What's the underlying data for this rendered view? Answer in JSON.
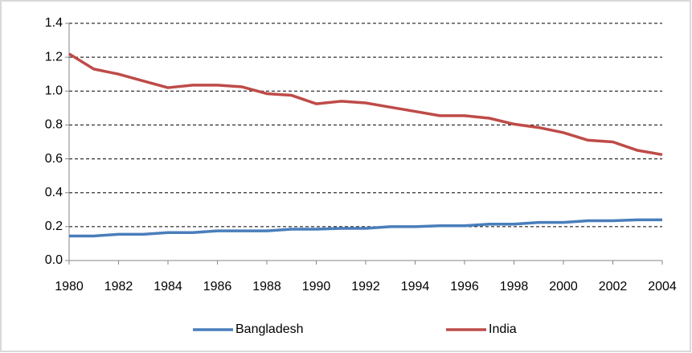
{
  "chart_data": {
    "type": "line",
    "x": [
      1980,
      1981,
      1982,
      1983,
      1984,
      1985,
      1986,
      1987,
      1988,
      1989,
      1990,
      1991,
      1992,
      1993,
      1994,
      1995,
      1996,
      1997,
      1998,
      1999,
      2000,
      2001,
      2002,
      2003,
      2004
    ],
    "series": [
      {
        "name": "Bangladesh",
        "color": "#4a7ebb",
        "values": [
          0.145,
          0.145,
          0.155,
          0.155,
          0.165,
          0.165,
          0.175,
          0.175,
          0.175,
          0.185,
          0.185,
          0.19,
          0.19,
          0.2,
          0.2,
          0.205,
          0.205,
          0.215,
          0.215,
          0.225,
          0.225,
          0.235,
          0.235,
          0.24,
          0.24
        ]
      },
      {
        "name": "India",
        "color": "#be4b48",
        "values": [
          1.22,
          1.13,
          1.1,
          1.06,
          1.02,
          1.035,
          1.035,
          1.025,
          0.985,
          0.975,
          0.925,
          0.94,
          0.93,
          0.905,
          0.88,
          0.855,
          0.855,
          0.84,
          0.805,
          0.785,
          0.755,
          0.71,
          0.7,
          0.65,
          0.625
        ]
      }
    ],
    "xlim": [
      1980,
      2004
    ],
    "xticks": [
      1980,
      1982,
      1984,
      1986,
      1988,
      1990,
      1992,
      1994,
      1996,
      1998,
      2000,
      2002,
      2004
    ],
    "ylim": [
      0,
      1.4
    ],
    "yticks": [
      {
        "value": 0,
        "label": "0.0"
      },
      0.2,
      0.4,
      0.6,
      0.8,
      {
        "value": 1,
        "label": "1.0"
      },
      1.2,
      1.4
    ],
    "grid": true,
    "legend": "bottom"
  }
}
